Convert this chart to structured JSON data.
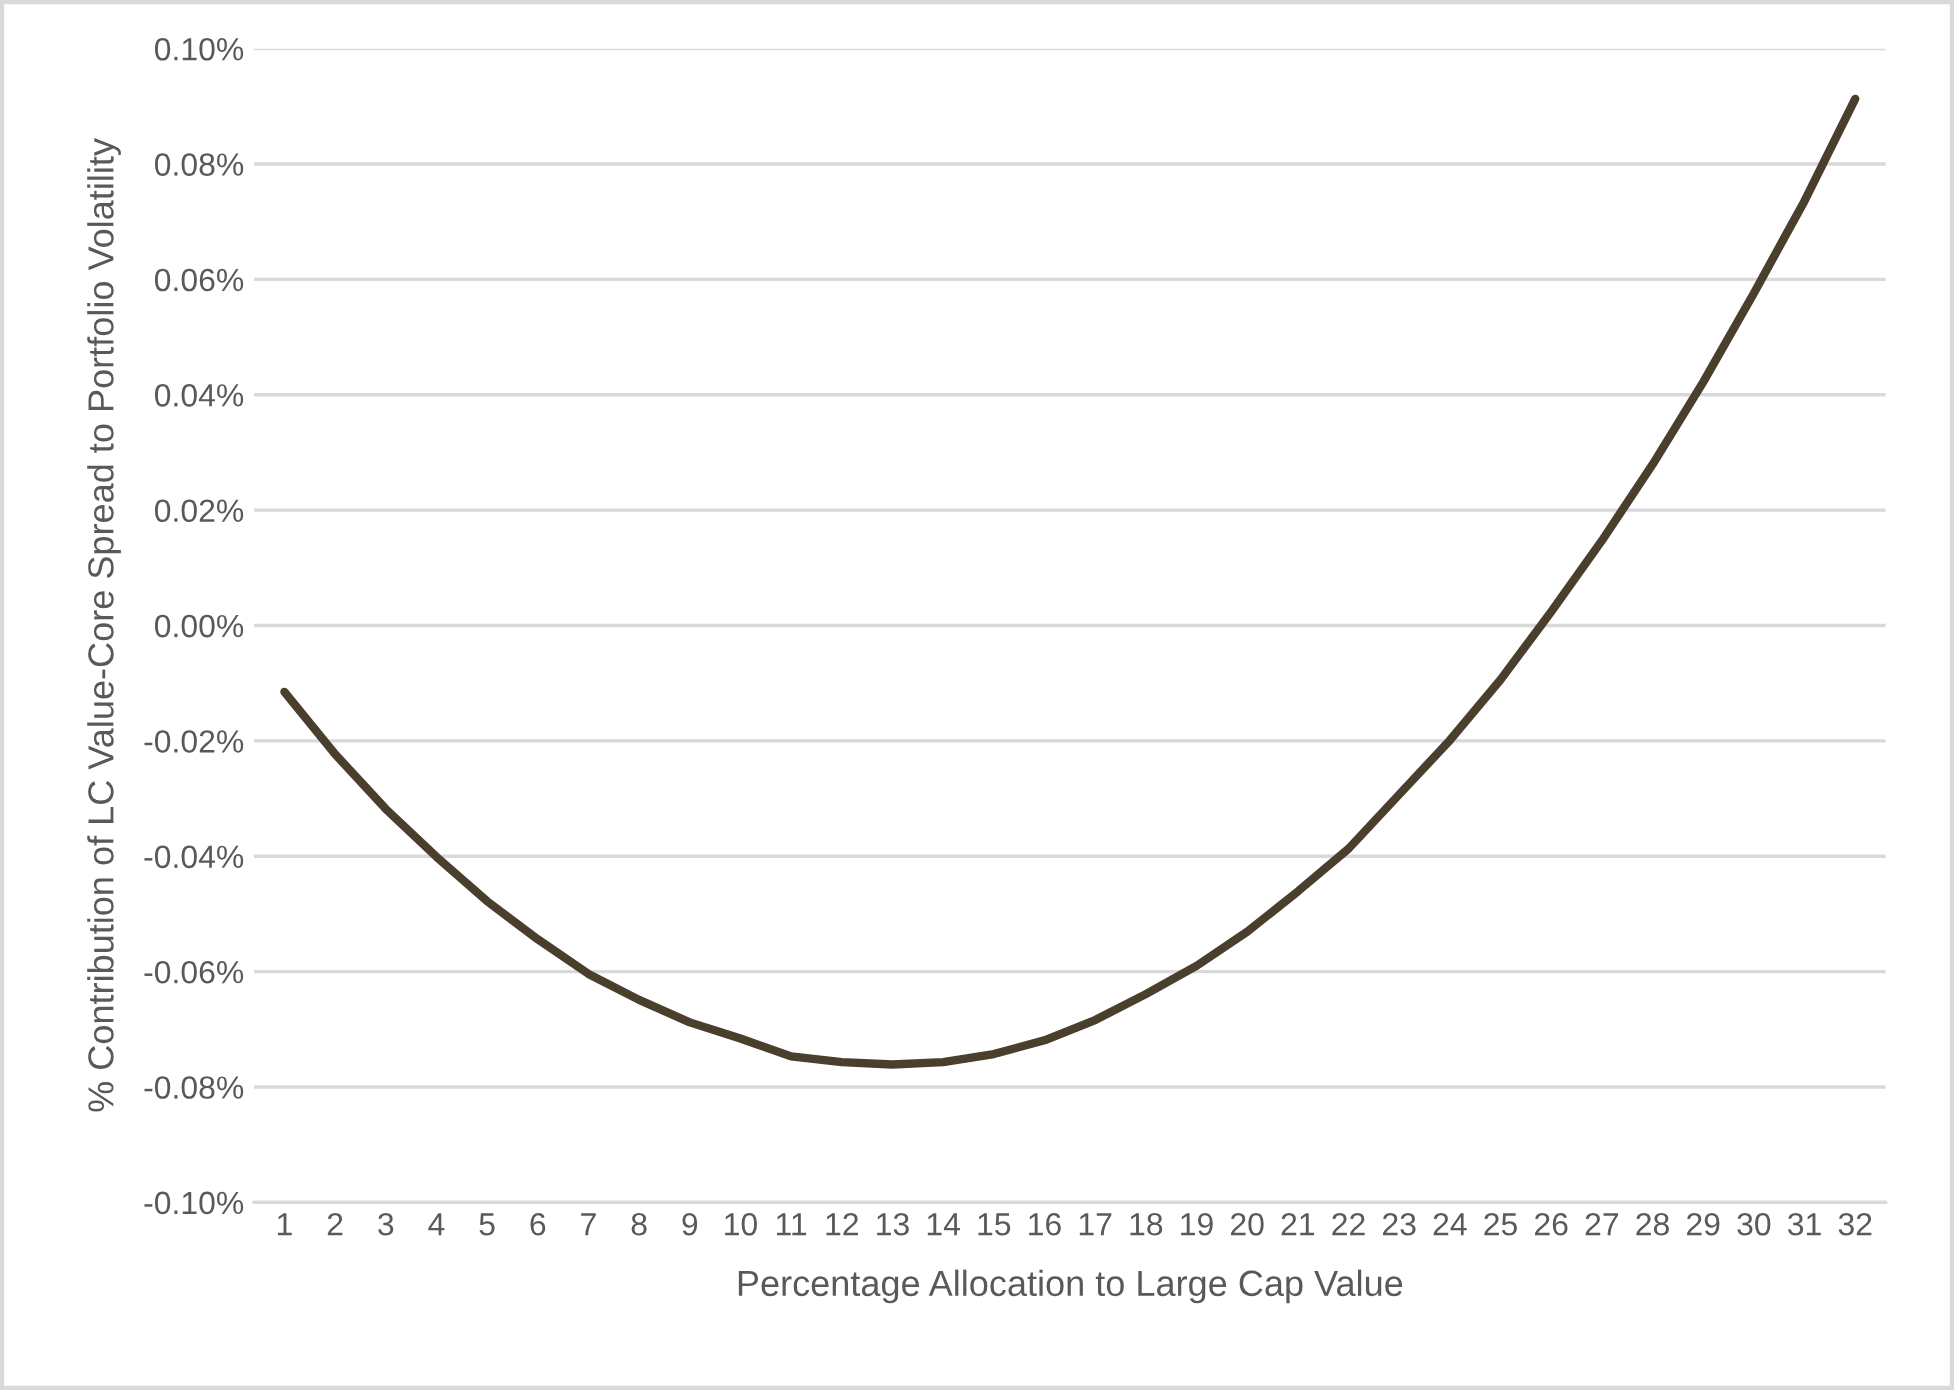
{
  "chart_data": {
    "type": "line",
    "xlabel": "Percentage Allocation to Large Cap Value",
    "ylabel": "% Contribution of LC Value-Core Spread to Portfolio Volatility",
    "categories": [
      "1",
      "2",
      "3",
      "4",
      "5",
      "6",
      "7",
      "8",
      "9",
      "10",
      "11",
      "12",
      "13",
      "14",
      "15",
      "16",
      "17",
      "18",
      "19",
      "20",
      "21",
      "22",
      "23",
      "24",
      "25",
      "26",
      "27",
      "28",
      "29",
      "30",
      "31",
      "32"
    ],
    "series": [
      {
        "color": "#4a3f2c",
        "values": [
          -0.0115,
          -0.0223,
          -0.0318,
          -0.0401,
          -0.0478,
          -0.0544,
          -0.0604,
          -0.0649,
          -0.0688,
          -0.0716,
          -0.0747,
          -0.0757,
          -0.0761,
          -0.0757,
          -0.0743,
          -0.0719,
          -0.0684,
          -0.0639,
          -0.059,
          -0.0531,
          -0.0461,
          -0.0387,
          -0.0293,
          -0.0199,
          -0.0094,
          0.0024,
          0.0147,
          0.0279,
          0.0422,
          0.0576,
          0.0736,
          0.0913
        ]
      }
    ],
    "ylim": [
      -0.1,
      0.1
    ],
    "yticks": [
      {
        "value": -0.1,
        "label": "-0.10%"
      },
      {
        "value": -0.08,
        "label": "-0.08%"
      },
      {
        "value": -0.06,
        "label": "-0.06%"
      },
      {
        "value": -0.04,
        "label": "-0.04%"
      },
      {
        "value": -0.02,
        "label": "-0.02%"
      },
      {
        "value": 0.0,
        "label": "0.00%"
      },
      {
        "value": 0.02,
        "label": "0.02%"
      },
      {
        "value": 0.04,
        "label": "0.04%"
      },
      {
        "value": 0.06,
        "label": "0.06%"
      },
      {
        "value": 0.08,
        "label": "0.08%"
      },
      {
        "value": 0.1,
        "label": "0.10%"
      }
    ],
    "grid": "y",
    "marker": "none",
    "line_style": "solid"
  }
}
